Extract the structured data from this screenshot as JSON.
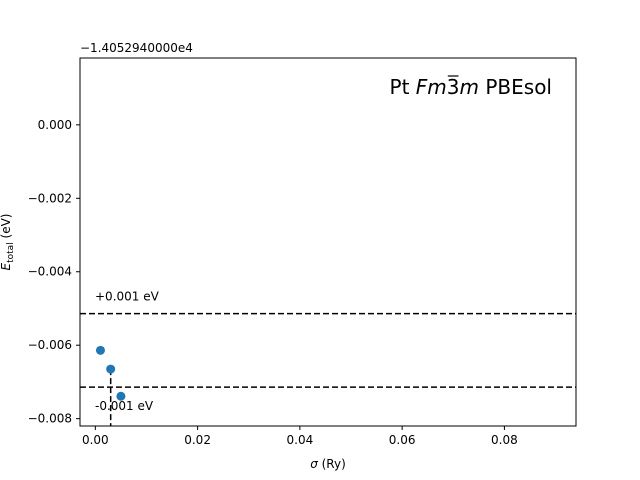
{
  "chart_data": {
    "type": "scatter",
    "title": "Pt Fm3m PBEsol",
    "title_parts": {
      "prefix": "Pt ",
      "spacegroup_pre": "Fm",
      "spacegroup_bar": "3",
      "spacegroup_post": "m",
      "suffix": " PBEsol"
    },
    "xlabel": "σ (Ry)",
    "xlabel_parts": {
      "symbol": "σ",
      "unit": " (Ry)"
    },
    "ylabel": "E_total (eV)",
    "ylabel_parts": {
      "symbol": "E",
      "subscript": "total",
      "unit": " (eV)"
    },
    "y_offset_label": "−1.4052940000e4",
    "xlim": [
      -0.003,
      0.094
    ],
    "ylim": [
      -0.0082,
      0.00182
    ],
    "x_ticks": [
      0.0,
      0.02,
      0.04,
      0.06,
      0.08
    ],
    "x_tick_labels": [
      "0.00",
      "0.02",
      "0.04",
      "0.06",
      "0.08"
    ],
    "y_ticks": [
      0.0,
      -0.002,
      -0.004,
      -0.006,
      -0.008
    ],
    "y_tick_labels": [
      "0.000",
      "−0.002",
      "−0.004",
      "−0.006",
      "−0.008"
    ],
    "grid": false,
    "series": [
      {
        "color": "#1f77b4",
        "points": [
          {
            "x": 0.001,
            "y": -0.00614
          },
          {
            "x": 0.003,
            "y": -0.00665
          },
          {
            "x": 0.005,
            "y": -0.00739
          }
        ]
      }
    ],
    "reference_lines": [
      {
        "y": -0.00514,
        "label": "+0.001 eV",
        "style": "dashed",
        "color": "#000000"
      },
      {
        "y": -0.00714,
        "label": "-0.001 eV",
        "style": "dashed",
        "color": "#000000"
      }
    ],
    "vertical_marker": {
      "x": 0.003,
      "y_top": -0.00665,
      "style": "dashed",
      "color": "#000000"
    }
  }
}
